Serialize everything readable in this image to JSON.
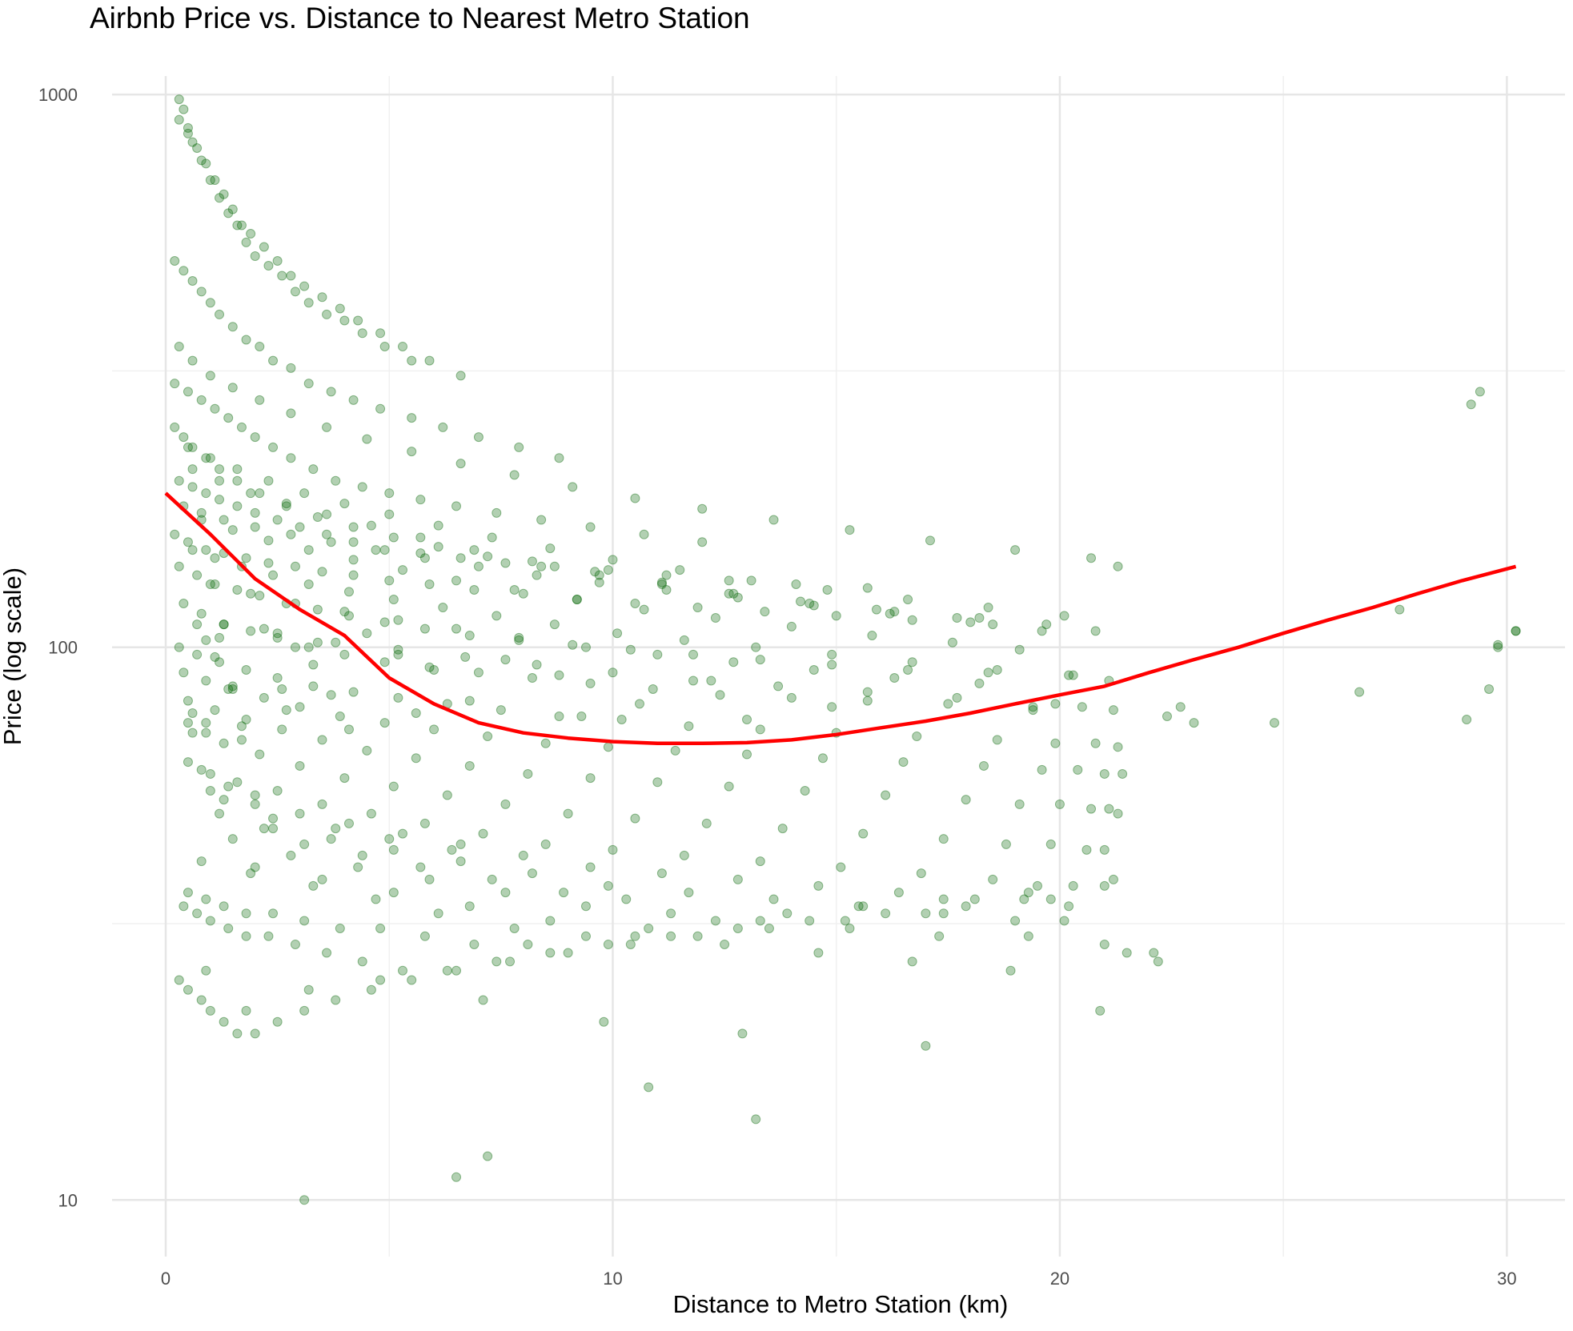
{
  "chart_data": {
    "type": "scatter",
    "title": "Airbnb Price vs. Distance to Nearest Metro Station",
    "xlabel": "Distance to Metro Station (km)",
    "ylabel": "Price (log scale)",
    "xlim": [
      -1.2,
      31.3
    ],
    "ylim": [
      7.9,
      1080
    ],
    "yscale": "log",
    "x_ticks": [
      0,
      10,
      20,
      30
    ],
    "x_tick_labels": [
      "0",
      "10",
      "20",
      "30"
    ],
    "y_ticks": [
      10,
      100,
      1000
    ],
    "y_tick_labels": [
      "10",
      "100",
      "1000"
    ],
    "grid": true,
    "legend": "none",
    "series": [
      {
        "kind": "points",
        "color": "#006400",
        "opacity": 0.3,
        "x": [
          0.3,
          0.4,
          0.5,
          0.6,
          0.8,
          1.0,
          1.2,
          1.4,
          1.6,
          1.8,
          2.0,
          2.3,
          2.6,
          2.9,
          3.2,
          3.6,
          4.0,
          4.4,
          4.9,
          5.5,
          0.3,
          0.5,
          0.7,
          0.9,
          1.1,
          1.3,
          1.5,
          1.7,
          1.9,
          2.2,
          2.5,
          2.8,
          3.1,
          3.5,
          3.9,
          4.3,
          4.8,
          5.3,
          5.9,
          6.6,
          0.2,
          0.4,
          0.6,
          0.8,
          1.0,
          1.2,
          1.5,
          1.8,
          2.1,
          2.4,
          2.8,
          3.2,
          3.7,
          4.2,
          4.8,
          5.5,
          6.2,
          7.0,
          7.9,
          8.8,
          0.2,
          0.5,
          0.8,
          1.1,
          1.4,
          1.7,
          2.0,
          2.4,
          2.8,
          3.3,
          3.8,
          4.4,
          5.0,
          5.7,
          6.5,
          7.4,
          8.4,
          9.5,
          10.7,
          12.0,
          0.3,
          0.6,
          0.9,
          1.2,
          1.6,
          2.0,
          2.5,
          3.0,
          3.6,
          4.2,
          4.9,
          5.7,
          6.6,
          7.6,
          8.7,
          9.9,
          11.2,
          12.6,
          14.1,
          15.7,
          0.2,
          0.5,
          0.9,
          1.3,
          1.8,
          2.3,
          2.9,
          3.5,
          4.2,
          5.0,
          5.9,
          6.9,
          8.0,
          9.2,
          10.5,
          11.9,
          13.4,
          15.0,
          16.7,
          18.5,
          0.3,
          0.7,
          1.1,
          1.6,
          2.1,
          2.7,
          3.4,
          4.1,
          4.9,
          5.8,
          6.8,
          7.9,
          9.1,
          10.4,
          11.8,
          13.3,
          14.9,
          16.6,
          18.4,
          20.3,
          0.4,
          0.8,
          1.3,
          1.9,
          2.5,
          3.2,
          4.0,
          4.9,
          5.9,
          7.0,
          8.2,
          9.5,
          10.9,
          12.4,
          14.0,
          15.7,
          17.5,
          19.4,
          20.5,
          21.2,
          0.3,
          0.7,
          1.2,
          1.8,
          2.5,
          3.3,
          4.2,
          5.2,
          6.3,
          7.5,
          8.8,
          10.2,
          11.7,
          13.3,
          15.0,
          16.8,
          18.6,
          19.9,
          20.8,
          21.3,
          0.4,
          0.9,
          1.5,
          2.2,
          3.0,
          3.9,
          4.9,
          6.0,
          7.2,
          8.5,
          9.9,
          11.4,
          13.0,
          14.7,
          16.5,
          18.3,
          19.6,
          20.4,
          21.0,
          21.4,
          0.5,
          1.1,
          1.8,
          2.6,
          3.5,
          4.5,
          5.6,
          6.8,
          8.1,
          9.5,
          11.0,
          12.6,
          14.3,
          16.1,
          17.9,
          19.1,
          20.0,
          20.7,
          21.1,
          21.3,
          0.6,
          1.3,
          2.1,
          3.0,
          4.0,
          5.1,
          6.3,
          7.6,
          9.0,
          10.5,
          12.1,
          13.8,
          15.6,
          17.4,
          18.8,
          19.8,
          20.6,
          21.0,
          0.9,
          1.7,
          0.8,
          1.6,
          2.5,
          3.5,
          4.6,
          5.8,
          7.1,
          8.5,
          10.0,
          11.6,
          13.3,
          15.1,
          16.9,
          18.5,
          19.5,
          20.3,
          0.5,
          1.0,
          1.4,
          2.0,
          1.0,
          2.0,
          3.0,
          4.1,
          5.3,
          6.6,
          8.0,
          9.5,
          11.1,
          12.8,
          14.6,
          16.4,
          18.1,
          19.2,
          20.2,
          1.3,
          2.4,
          3.8,
          5.0,
          6.4,
          1.2,
          2.4,
          3.7,
          5.1,
          6.6,
          8.2,
          9.9,
          11.7,
          13.6,
          15.5,
          17.4,
          19.0,
          20.1,
          2.2,
          3.1,
          4.4,
          5.7,
          7.3,
          8.9,
          10.3,
          1.5,
          2.8,
          4.3,
          5.9,
          7.6,
          9.4,
          11.3,
          13.3,
          15.3,
          17.3,
          19.3,
          22.4,
          22.7,
          23.0,
          0.8,
          1.9,
          3.3,
          4.7,
          6.1,
          7.8,
          2.0,
          3.5,
          5.1,
          6.8,
          8.6,
          10.5,
          12.5,
          14.6,
          16.7,
          18.9,
          21.0,
          21.5,
          22.1,
          24.8,
          26.7,
          29.1,
          29.6,
          29.8,
          30.2,
          0.9,
          1.8,
          3.2,
          4.8,
          7.1,
          9.8,
          12.9,
          17.0,
          20.9,
          22.2,
          27.6,
          29.4,
          29.8,
          30.2,
          29.2,
          13.2,
          10.8,
          3.1,
          6.5,
          7.2,
          0.3,
          0.5,
          0.8,
          1.0,
          1.3,
          1.6,
          2.0,
          2.5,
          3.1,
          3.8,
          4.6,
          5.5,
          6.5,
          7.7,
          9.0,
          10.4,
          11.9,
          13.5,
          15.2,
          17.0,
          0.4,
          0.7,
          1.0,
          1.4,
          1.8,
          2.3,
          2.9,
          3.6,
          4.4,
          5.3,
          6.3,
          7.4,
          8.6,
          9.9,
          11.3,
          12.8,
          14.4,
          16.1,
          17.9,
          19.8,
          0.5,
          0.9,
          1.3,
          1.8,
          2.4,
          3.1,
          3.9,
          4.8,
          5.8,
          6.9,
          8.1,
          9.4,
          10.8,
          12.3,
          13.9,
          15.6,
          17.4,
          19.3,
          21.0,
          21.2,
          0.6,
          1.1,
          1.7,
          2.4,
          3.2,
          4.1,
          5.1,
          6.2,
          7.4,
          8.7,
          10.1,
          11.6,
          13.2,
          14.9,
          16.7,
          18.6,
          20.2,
          21.1,
          1.5,
          2.6,
          0.2,
          0.4,
          0.6,
          0.9,
          1.2,
          1.6,
          2.1,
          2.7,
          3.4,
          4.2,
          5.1,
          6.1,
          7.2,
          8.4,
          9.7,
          11.1,
          12.6,
          14.2,
          15.9,
          17.7,
          0.3,
          0.6,
          1.0,
          1.5,
          2.1,
          2.8,
          3.6,
          4.5,
          5.5,
          6.6,
          7.8,
          9.1,
          10.5,
          12.0,
          13.6,
          15.3,
          17.1,
          19.0,
          20.7,
          21.3,
          0.4,
          0.8,
          1.3,
          2.0,
          2.8,
          3.7,
          4.7,
          5.8,
          7.0,
          8.3,
          9.7,
          11.2,
          12.8,
          14.5,
          16.3,
          18.2,
          19.7,
          20.8,
          1.2,
          3.4,
          0.5,
          1.0,
          1.6,
          2.3,
          3.1,
          4.0,
          5.0,
          6.1,
          7.3,
          8.6,
          10.0,
          11.5,
          13.1,
          14.8,
          16.6,
          18.4,
          20.1,
          0.7,
          2.2,
          4.5,
          0.6,
          1.2,
          1.9,
          2.7,
          3.6,
          4.6,
          5.7,
          6.9,
          8.2,
          9.6,
          11.1,
          12.7,
          14.4,
          16.2,
          18.0,
          19.6,
          0.9,
          2.9,
          5.2,
          7.6,
          0.8,
          1.5,
          2.3,
          3.2,
          4.2,
          5.3,
          6.5,
          7.8,
          9.2,
          10.7,
          12.3,
          14.0,
          15.8,
          17.6,
          19.1,
          1.1,
          3.3,
          6.0,
          8.8,
          12.2,
          1.0,
          1.9,
          2.9,
          4.0,
          5.2,
          6.5,
          7.9,
          9.4,
          11.0,
          12.7,
          14.5,
          16.3,
          18.2,
          1.4,
          3.7,
          6.8,
          10.6,
          14.9,
          19.4,
          0.6,
          1.3,
          2.5,
          3.8,
          5.2,
          6.7,
          8.3,
          10.0,
          11.8,
          13.7,
          15.7,
          17.7,
          19.9,
          2.7,
          5.6,
          9.3,
          13.0,
          0.5,
          1.7,
          4.1,
          0.9
        ],
        "y": [
          980,
          940,
          870,
          820,
          760,
          700,
          650,
          610,
          580,
          540,
          510,
          490,
          470,
          440,
          420,
          400,
          390,
          370,
          350,
          330,
          900,
          850,
          800,
          750,
          700,
          660,
          620,
          580,
          560,
          530,
          500,
          470,
          450,
          430,
          410,
          390,
          370,
          350,
          330,
          310,
          500,
          480,
          460,
          440,
          420,
          400,
          380,
          360,
          350,
          330,
          320,
          300,
          290,
          280,
          270,
          260,
          250,
          240,
          230,
          220,
          300,
          290,
          280,
          270,
          260,
          250,
          240,
          230,
          220,
          210,
          200,
          195,
          190,
          185,
          180,
          175,
          170,
          165,
          160,
          155,
          200,
          195,
          190,
          185,
          180,
          175,
          170,
          165,
          160,
          155,
          150,
          148,
          145,
          142,
          140,
          138,
          135,
          132,
          130,
          128,
          160,
          155,
          150,
          148,
          145,
          142,
          140,
          137,
          135,
          132,
          130,
          127,
          125,
          122,
          120,
          118,
          116,
          114,
          112,
          110,
          140,
          135,
          130,
          127,
          124,
          120,
          117,
          114,
          111,
          108,
          105,
          103,
          101,
          99,
          97,
          95,
          93,
          91,
          90,
          89,
          120,
          115,
          110,
          107,
          104,
          100,
          97,
          94,
          92,
          90,
          88,
          86,
          84,
          82,
          81,
          80,
          79,
          78,
          78,
          77,
          100,
          97,
          94,
          91,
          88,
          85,
          83,
          81,
          79,
          77,
          75,
          74,
          72,
          71,
          70,
          69,
          68,
          67,
          67,
          66,
          90,
          87,
          84,
          81,
          78,
          75,
          73,
          71,
          69,
          67,
          66,
          65,
          64,
          63,
          62,
          61,
          60,
          60,
          59,
          59,
          80,
          77,
          74,
          71,
          68,
          65,
          63,
          61,
          59,
          58,
          57,
          56,
          55,
          54,
          53,
          52,
          52,
          51,
          51,
          50,
          70,
          67,
          64,
          61,
          58,
          56,
          54,
          52,
          50,
          49,
          48,
          47,
          46,
          45,
          44,
          44,
          43,
          43,
          73,
          68,
          60,
          57,
          55,
          52,
          50,
          48,
          46,
          44,
          43,
          42,
          41,
          40,
          39,
          38,
          37,
          37,
          62,
          59,
          56,
          54,
          55,
          52,
          50,
          48,
          46,
          44,
          42,
          40,
          39,
          38,
          37,
          36,
          35,
          35,
          34,
          53,
          49,
          47,
          45,
          43,
          50,
          47,
          45,
          43,
          41,
          39,
          37,
          36,
          35,
          34,
          33,
          32,
          32,
          47,
          44,
          42,
          40,
          38,
          36,
          35,
          45,
          42,
          40,
          38,
          36,
          34,
          33,
          32,
          31,
          30,
          30,
          75,
          78,
          73,
          41,
          39,
          37,
          35,
          33,
          31,
          40,
          38,
          36,
          34,
          32,
          30,
          29,
          28,
          27,
          26,
          29,
          28,
          28,
          73,
          83,
          74,
          84,
          100,
          107,
          26,
          22,
          24,
          25,
          23,
          21,
          20,
          19,
          22,
          27,
          117,
          290,
          101,
          107,
          275,
          14,
          16,
          10,
          11,
          12,
          25,
          24,
          23,
          22,
          21,
          20,
          20,
          21,
          22,
          23,
          24,
          25,
          26,
          27,
          28,
          29,
          30,
          31,
          32,
          33,
          34,
          33,
          32,
          31,
          30,
          30,
          29,
          28,
          27,
          26,
          26,
          27,
          28,
          29,
          30,
          31,
          32,
          33,
          34,
          35,
          36,
          35,
          34,
          33,
          33,
          32,
          31,
          31,
          30,
          29,
          29,
          30,
          31,
          32,
          33,
          34,
          35,
          36,
          37,
          38,
          150,
          145,
          140,
          135,
          130,
          126,
          122,
          118,
          114,
          110,
          106,
          103,
          100,
          97,
          94,
          91,
          89,
          87,
          85,
          84,
          250,
          240,
          230,
          220,
          210,
          200,
          190,
          180,
          172,
          165,
          158,
          152,
          146,
          140,
          135,
          130,
          125,
          121,
          117,
          113,
          350,
          330,
          310,
          295,
          280,
          265,
          250,
          238,
          226,
          215,
          205,
          195,
          186,
          178,
          170,
          163,
          156,
          150,
          145,
          140,
          180,
          175,
          170,
          165,
          160,
          155,
          150,
          145,
          140,
          135,
          131,
          127,
          123,
          119,
          116,
          113,
          110,
          107,
          104,
          102,
          230,
          220,
          210,
          200,
          190,
          182,
          174,
          166,
          158,
          151,
          144,
          138,
          132,
          127,
          122,
          118,
          114,
          110,
          108,
          106,
          210,
          200,
          190,
          182,
          174,
          166,
          158,
          150,
          143,
          137,
          131,
          125,
          120,
          115,
          111,
          107,
          103,
          100,
          97,
          95,
          170,
          163,
          156,
          150,
          144,
          138,
          132,
          127,
          122,
          117,
          113,
          109,
          105,
          102,
          99,
          96,
          93,
          91,
          89,
          87,
          130,
          125,
          120,
          116,
          112,
          108,
          104,
          100,
          97,
          94,
          91,
          88,
          86,
          84,
          82,
          80,
          79,
          78,
          77,
          76,
          110,
          106,
          102,
          99,
          96,
          93,
          90,
          87,
          85,
          83,
          81,
          79,
          77,
          76,
          75,
          74,
          73,
          72,
          71,
          70
        ]
      },
      {
        "kind": "smooth",
        "color": "#ff0000",
        "x": [
          0,
          1,
          2,
          3,
          4,
          5,
          6,
          7,
          8,
          9,
          10,
          11,
          12,
          13,
          14,
          15,
          16,
          17,
          18,
          19,
          20,
          21,
          22,
          23,
          24,
          25,
          26,
          27,
          28,
          29,
          30.2
        ],
        "y": [
          190,
          160,
          133,
          117,
          105,
          88,
          79,
          73,
          70,
          68.5,
          67.5,
          67,
          67,
          67.2,
          68,
          69.5,
          71.5,
          73.5,
          76,
          79,
          82,
          85,
          90,
          95,
          100,
          106,
          112,
          118,
          125,
          132,
          140
        ]
      }
    ]
  }
}
